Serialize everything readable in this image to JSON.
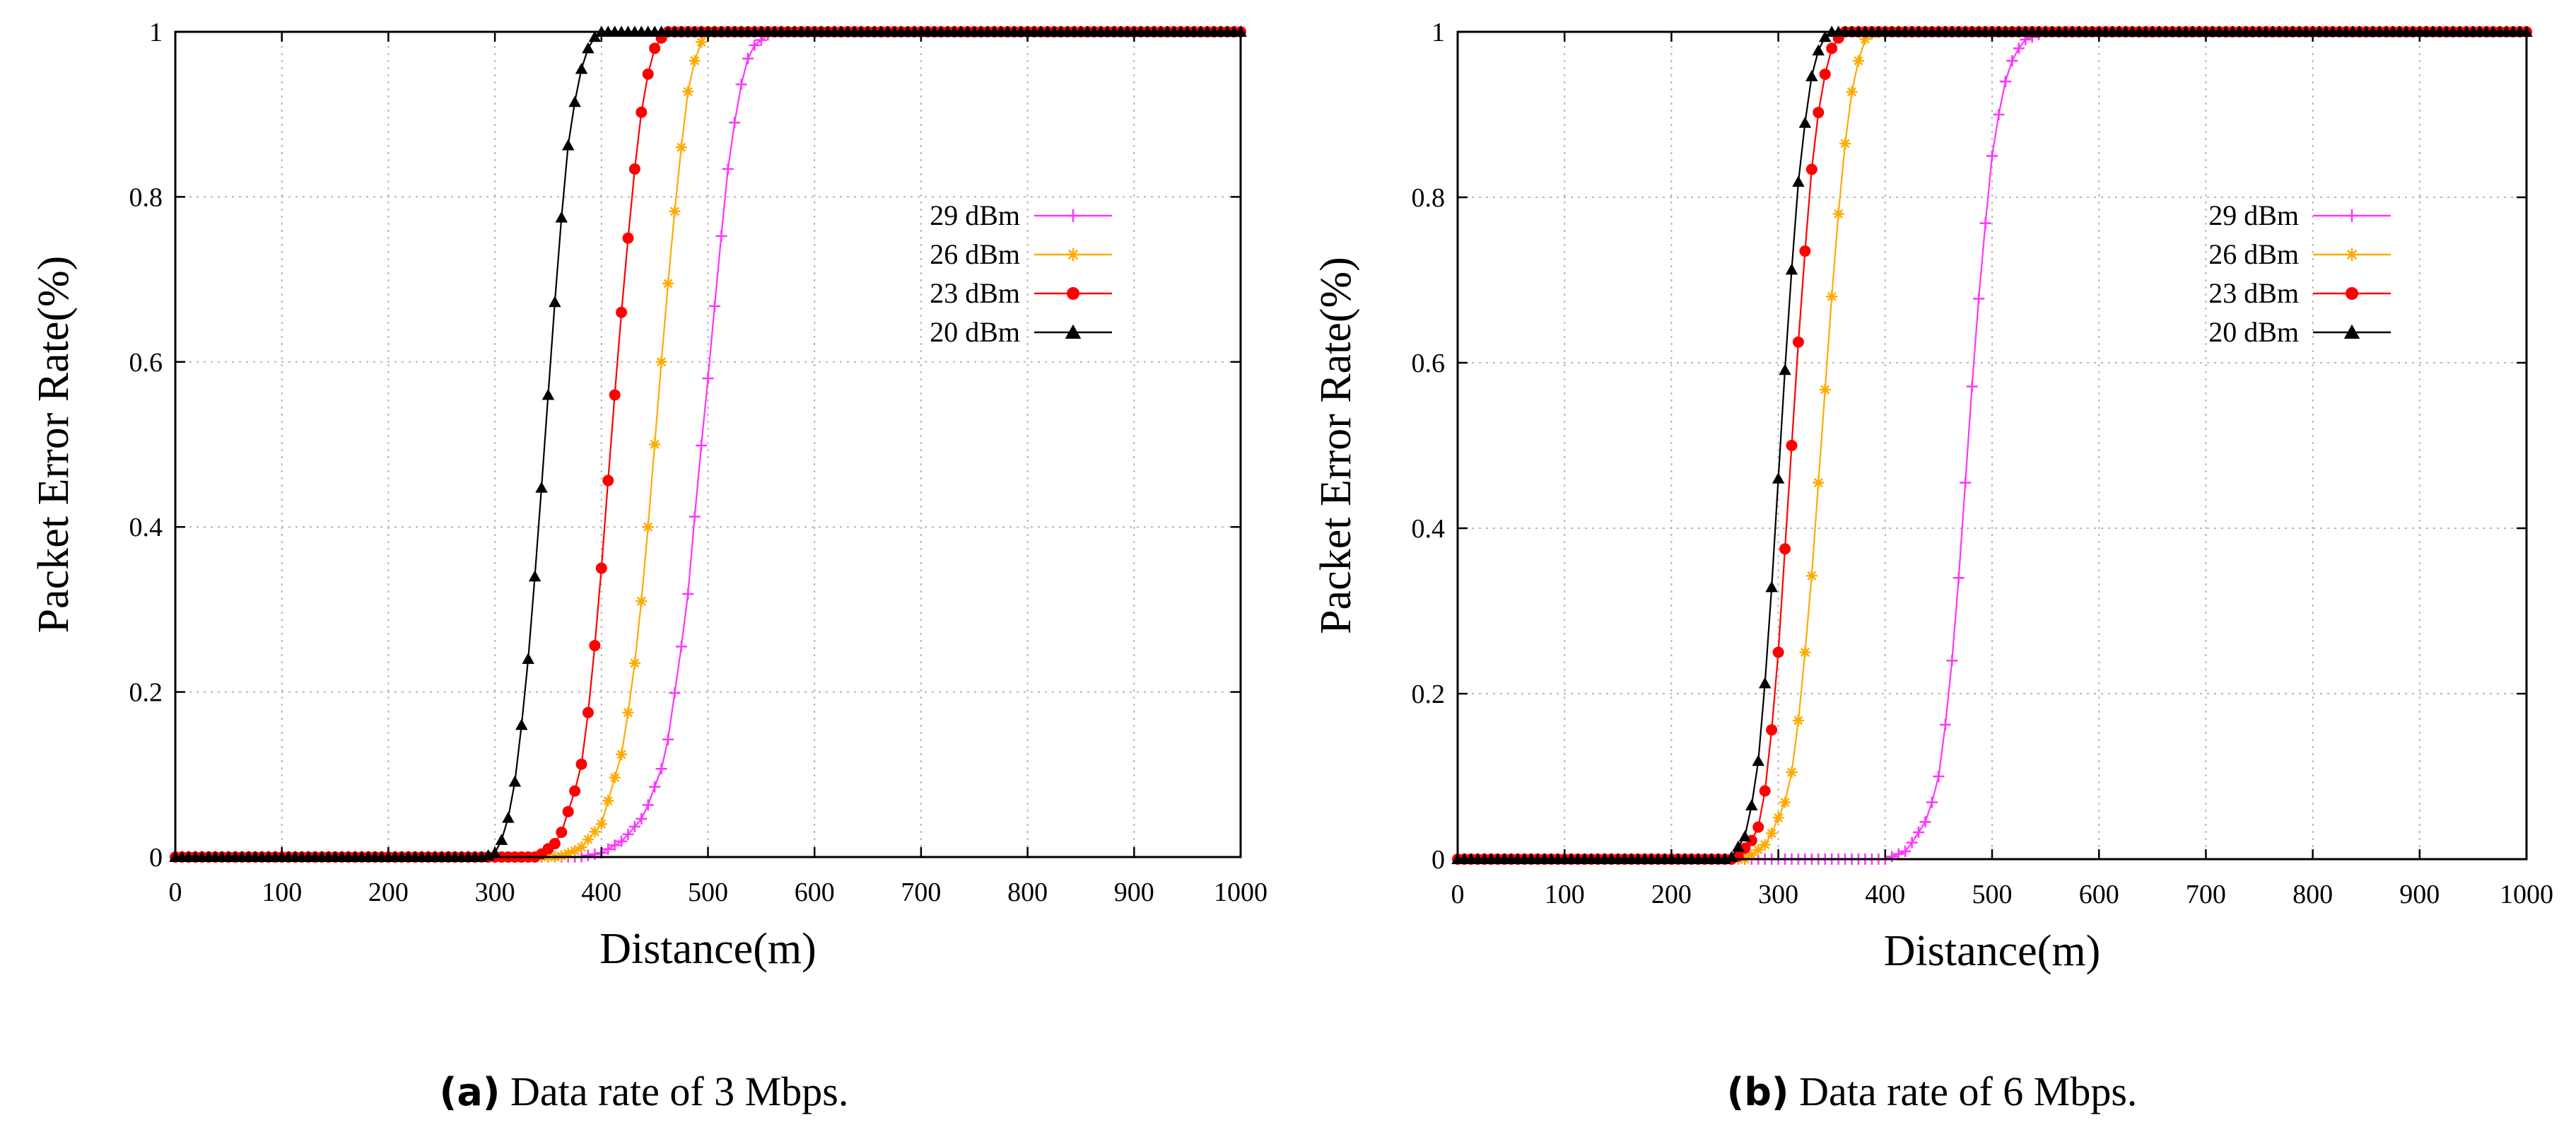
{
  "captions": [
    {
      "tag": "(a)",
      "text": "Data rate of 3 Mbps."
    },
    {
      "tag": "(b)",
      "text": "Data rate of 6 Mbps."
    }
  ],
  "chart_data": [
    {
      "type": "line",
      "title": "",
      "xlabel": "Distance(m)",
      "ylabel": "Packet Error Rate(%)",
      "xlim": [
        0,
        1000
      ],
      "ylim": [
        0,
        1
      ],
      "xticks": [
        0,
        100,
        200,
        300,
        400,
        500,
        600,
        700,
        800,
        900,
        1000
      ],
      "yticks": [
        0,
        0.2,
        0.4,
        0.6,
        0.8,
        1
      ],
      "grid": true,
      "legend_position": "right-middle",
      "series": [
        {
          "name": "29 dBm",
          "color": "#ff33ff",
          "marker": "plus",
          "x": [
            0,
            380,
            400,
            420,
            440,
            460,
            480,
            490,
            500,
            510,
            520,
            530,
            540,
            560,
            1000
          ],
          "y": [
            0,
            0,
            0.005,
            0.02,
            0.05,
            0.12,
            0.3,
            0.45,
            0.58,
            0.72,
            0.85,
            0.93,
            0.98,
            1,
            1
          ]
        },
        {
          "name": "26 dBm",
          "color": "#ffaa00",
          "marker": "star",
          "x": [
            0,
            360,
            380,
            400,
            420,
            430,
            440,
            450,
            460,
            470,
            480,
            490,
            500,
            1000
          ],
          "y": [
            0,
            0,
            0.01,
            0.04,
            0.13,
            0.22,
            0.34,
            0.5,
            0.66,
            0.8,
            0.92,
            0.98,
            1,
            1
          ]
        },
        {
          "name": "23 dBm",
          "color": "#ff0000",
          "marker": "circle",
          "x": [
            0,
            340,
            360,
            380,
            390,
            400,
            410,
            420,
            430,
            440,
            450,
            460,
            1000
          ],
          "y": [
            0,
            0,
            0.02,
            0.1,
            0.2,
            0.35,
            0.52,
            0.68,
            0.82,
            0.93,
            0.98,
            1,
            1
          ]
        },
        {
          "name": "20 dBm",
          "color": "#000000",
          "marker": "triangle",
          "x": [
            0,
            290,
            300,
            310,
            320,
            330,
            340,
            350,
            360,
            370,
            380,
            390,
            400,
            410,
            1000
          ],
          "y": [
            0,
            0,
            0.005,
            0.03,
            0.1,
            0.22,
            0.38,
            0.56,
            0.74,
            0.88,
            0.95,
            0.99,
            1,
            1,
            1
          ]
        }
      ]
    },
    {
      "type": "line",
      "title": "",
      "xlabel": "Distance(m)",
      "ylabel": "Packet Error Rate(%)",
      "xlim": [
        0,
        1000
      ],
      "ylim": [
        0,
        1
      ],
      "xticks": [
        0,
        100,
        200,
        300,
        400,
        500,
        600,
        700,
        800,
        900,
        1000
      ],
      "yticks": [
        0,
        0.2,
        0.4,
        0.6,
        0.8,
        1
      ],
      "grid": true,
      "legend_position": "right-middle",
      "series": [
        {
          "name": "29 dBm",
          "color": "#ff33ff",
          "marker": "plus",
          "x": [
            0,
            400,
            420,
            440,
            450,
            460,
            470,
            480,
            490,
            500,
            510,
            520,
            530,
            550,
            1000
          ],
          "y": [
            0,
            0,
            0.01,
            0.05,
            0.1,
            0.2,
            0.36,
            0.55,
            0.72,
            0.85,
            0.93,
            0.97,
            0.99,
            1,
            1
          ]
        },
        {
          "name": "26 dBm",
          "color": "#ffaa00",
          "marker": "star",
          "x": [
            0,
            270,
            290,
            310,
            320,
            330,
            340,
            350,
            360,
            370,
            380,
            390,
            1000
          ],
          "y": [
            0,
            0,
            0.02,
            0.08,
            0.18,
            0.32,
            0.5,
            0.68,
            0.84,
            0.94,
            0.99,
            1,
            1
          ]
        },
        {
          "name": "23 dBm",
          "color": "#ff0000",
          "marker": "circle",
          "x": [
            0,
            260,
            280,
            290,
            300,
            310,
            320,
            330,
            340,
            350,
            360,
            1000
          ],
          "y": [
            0,
            0,
            0.03,
            0.1,
            0.25,
            0.45,
            0.65,
            0.82,
            0.93,
            0.98,
            1,
            1
          ]
        },
        {
          "name": "20 dBm",
          "color": "#000000",
          "marker": "triangle",
          "x": [
            0,
            255,
            270,
            280,
            290,
            300,
            310,
            320,
            330,
            340,
            350,
            1000
          ],
          "y": [
            0,
            0,
            0.03,
            0.1,
            0.25,
            0.46,
            0.67,
            0.84,
            0.94,
            0.99,
            1,
            1
          ]
        }
      ]
    }
  ]
}
